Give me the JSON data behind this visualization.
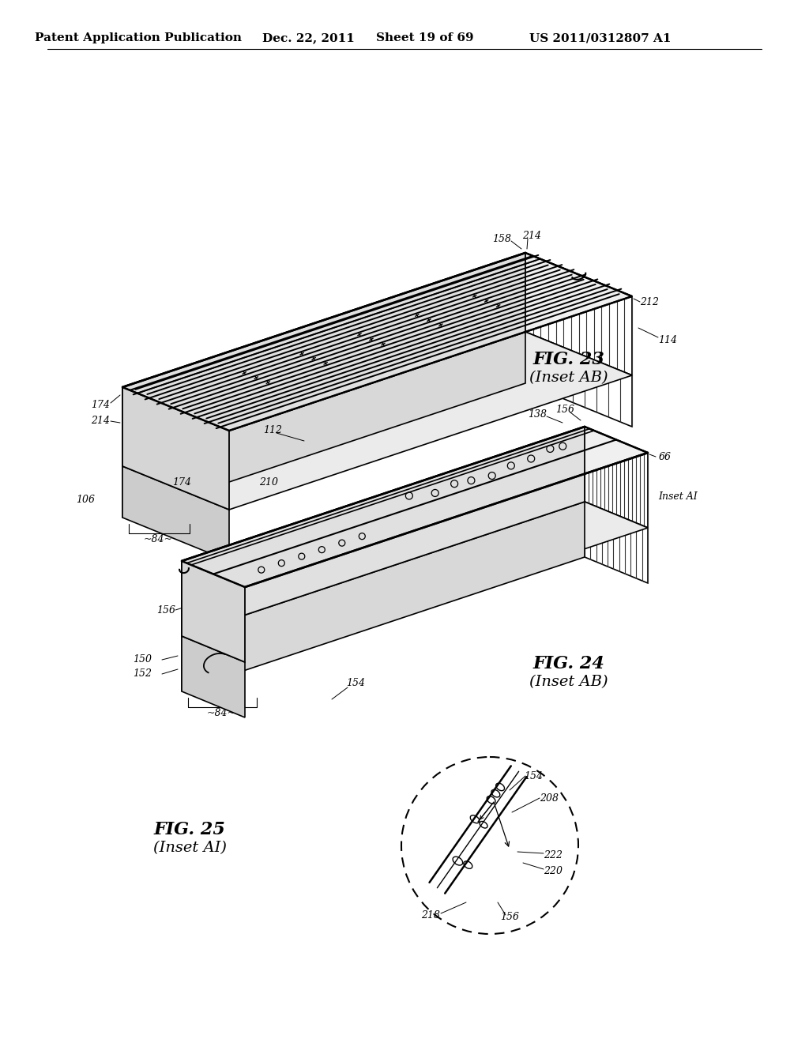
{
  "background_color": "#ffffff",
  "header_text": "Patent Application Publication",
  "header_date": "Dec. 22, 2011",
  "header_sheet": "Sheet 19 of 69",
  "header_patent": "US 2011/0312807 A1",
  "fig23_label": "FIG. 23",
  "fig23_sublabel": "(Inset AB)",
  "fig24_label": "FIG. 24",
  "fig24_sublabel": "(Inset AB)",
  "fig25_label": "FIG. 25",
  "fig25_sublabel": "(Inset AI)",
  "line_color": "#000000",
  "font_size_header": 11,
  "font_size_fig": 15,
  "font_size_sublabel": 13,
  "font_size_annot": 9
}
